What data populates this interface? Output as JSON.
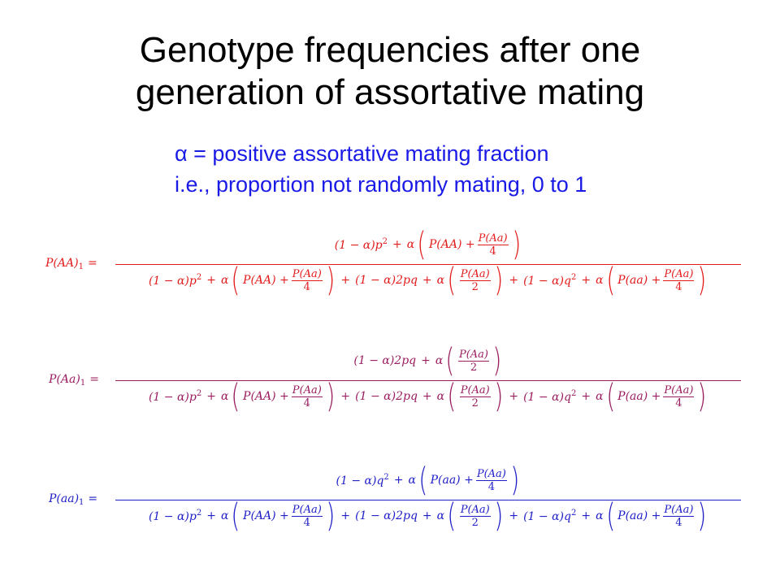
{
  "title": {
    "line1": "Genotype frequencies after one",
    "line2": "generation of assortative mating"
  },
  "definition": {
    "symbol": "α",
    "line1_text": " = positive assortative mating fraction",
    "line2": "i.e., proportion not randomly mating, 0 to 1"
  },
  "colors": {
    "title": "#000000",
    "definition": "#1a1ae6",
    "eq_AA": "#e21b1b",
    "eq_Aa": "#9b1d5f",
    "eq_aa": "#2020c8"
  },
  "equations": [
    {
      "id": "AA",
      "lhs_base": "P(AA)",
      "lhs_sub": "1",
      "lhs_eq": "=",
      "numerator": {
        "term_a": "(1 − α)",
        "var": "p",
        "power": "2",
        "plus": "+",
        "alpha": "α",
        "inner": "P(AA) +",
        "frac_top": "P(Aa)",
        "frac_bot": "4"
      }
    },
    {
      "id": "Aa",
      "lhs_base": "P(Aa)",
      "lhs_sub": "1",
      "lhs_eq": "=",
      "numerator": {
        "term_a": "(1 − α)2pq",
        "plus": "+",
        "alpha": "α",
        "frac_top": "P(Aa)",
        "frac_bot": "2"
      }
    },
    {
      "id": "aa",
      "lhs_base": "P(aa)",
      "lhs_sub": "1",
      "lhs_eq": "=",
      "numerator": {
        "term_a": "(1 − α)",
        "var": "q",
        "power": "2",
        "plus": "+",
        "alpha": "α",
        "inner": "P(aa) +",
        "frac_top": "P(Aa)",
        "frac_bot": "4"
      }
    }
  ],
  "denominator": {
    "t1_a": "(1 − α)",
    "t1_var": "p",
    "t1_pow": "2",
    "plus": "+",
    "alpha": "α",
    "t1_inner": "P(AA) +",
    "t1_ftop": "P(Aa)",
    "t1_fbot": "4",
    "t2_a": "(1 − α)2pq",
    "t2_ftop": "P(Aa)",
    "t2_fbot": "2",
    "t3_a": "(1 − α)",
    "t3_var": "q",
    "t3_pow": "2",
    "t3_inner": "P(aa) +",
    "t3_ftop": "P(Aa)",
    "t3_fbot": "4"
  }
}
